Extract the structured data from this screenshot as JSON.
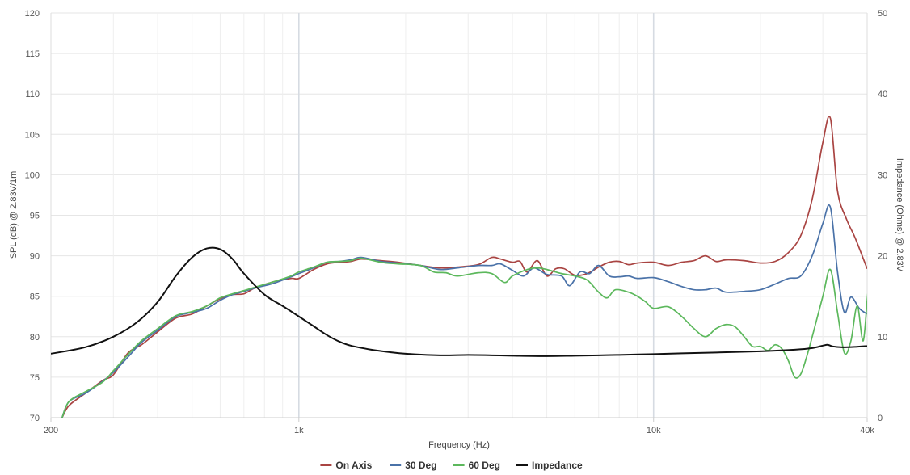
{
  "chart_data": {
    "type": "line",
    "title": "",
    "xlabel": "Frequency (Hz)",
    "ylabel": "SPL (dB) @ 2.83V/1m",
    "y2label": "Impedance (Ohms) @ 2.83V",
    "x_scale": "log",
    "xlim": [
      200,
      40000
    ],
    "ylim": [
      70,
      120
    ],
    "y2lim": [
      0,
      50
    ],
    "grid": true,
    "legend_position": "bottom-center",
    "x_ticks": [
      {
        "value": 200,
        "label": "200"
      },
      {
        "value": 1000,
        "label": "1k"
      },
      {
        "value": 10000,
        "label": "10k"
      },
      {
        "value": 40000,
        "label": "40k"
      }
    ],
    "y_ticks": [
      70,
      75,
      80,
      85,
      90,
      95,
      100,
      105,
      110,
      115,
      120
    ],
    "y2_ticks": [
      0,
      10,
      20,
      30,
      40,
      50
    ],
    "series": [
      {
        "name": "On Axis",
        "color": "#a94442",
        "axis": "left",
        "points": [
          [
            215,
            70
          ],
          [
            225,
            71.5
          ],
          [
            250,
            73
          ],
          [
            280,
            74.6
          ],
          [
            300,
            75.3
          ],
          [
            330,
            78
          ],
          [
            360,
            79
          ],
          [
            400,
            80.6
          ],
          [
            450,
            82.3
          ],
          [
            500,
            82.8
          ],
          [
            550,
            83.8
          ],
          [
            600,
            84.7
          ],
          [
            650,
            85.2
          ],
          [
            700,
            85.3
          ],
          [
            750,
            86
          ],
          [
            850,
            86.8
          ],
          [
            950,
            87.2
          ],
          [
            1000,
            87.2
          ],
          [
            1100,
            88.3
          ],
          [
            1200,
            89
          ],
          [
            1300,
            89.2
          ],
          [
            1400,
            89.3
          ],
          [
            1500,
            89.6
          ],
          [
            1700,
            89.4
          ],
          [
            1900,
            89.2
          ],
          [
            2200,
            88.8
          ],
          [
            2500,
            88.5
          ],
          [
            2800,
            88.6
          ],
          [
            3200,
            88.9
          ],
          [
            3500,
            89.8
          ],
          [
            3700,
            89.6
          ],
          [
            4000,
            89.2
          ],
          [
            4200,
            89.3
          ],
          [
            4400,
            88
          ],
          [
            4700,
            89.4
          ],
          [
            5000,
            87.5
          ],
          [
            5300,
            88.4
          ],
          [
            5600,
            88.4
          ],
          [
            6000,
            87.6
          ],
          [
            6500,
            87.8
          ],
          [
            7000,
            88.6
          ],
          [
            7500,
            89.2
          ],
          [
            8000,
            89.3
          ],
          [
            8500,
            88.9
          ],
          [
            9000,
            89.1
          ],
          [
            10000,
            89.2
          ],
          [
            11000,
            88.8
          ],
          [
            12000,
            89.2
          ],
          [
            13000,
            89.4
          ],
          [
            14000,
            90
          ],
          [
            15000,
            89.3
          ],
          [
            16000,
            89.5
          ],
          [
            18000,
            89.4
          ],
          [
            20000,
            89.1
          ],
          [
            22000,
            89.3
          ],
          [
            24000,
            90.4
          ],
          [
            26000,
            92.5
          ],
          [
            28000,
            97
          ],
          [
            30000,
            104
          ],
          [
            31500,
            107
          ],
          [
            33000,
            98
          ],
          [
            35000,
            94.5
          ],
          [
            37000,
            92.2
          ],
          [
            40000,
            88.4
          ]
        ]
      },
      {
        "name": "30 Deg",
        "color": "#4a72a8",
        "axis": "left",
        "points": [
          [
            215,
            70
          ],
          [
            225,
            72
          ],
          [
            250,
            73
          ],
          [
            280,
            74.5
          ],
          [
            300,
            75.6
          ],
          [
            330,
            77.5
          ],
          [
            360,
            79.3
          ],
          [
            400,
            80.8
          ],
          [
            450,
            82.5
          ],
          [
            500,
            83
          ],
          [
            550,
            83.5
          ],
          [
            600,
            84.5
          ],
          [
            650,
            85.2
          ],
          [
            700,
            85.6
          ],
          [
            750,
            86
          ],
          [
            850,
            86.6
          ],
          [
            950,
            87.4
          ],
          [
            1000,
            87.8
          ],
          [
            1100,
            88.5
          ],
          [
            1200,
            89.2
          ],
          [
            1300,
            89.3
          ],
          [
            1400,
            89.5
          ],
          [
            1500,
            89.8
          ],
          [
            1700,
            89.3
          ],
          [
            1900,
            89.1
          ],
          [
            2200,
            88.8
          ],
          [
            2500,
            88.3
          ],
          [
            2800,
            88.5
          ],
          [
            3200,
            88.8
          ],
          [
            3500,
            88.8
          ],
          [
            3700,
            89
          ],
          [
            4000,
            88.2
          ],
          [
            4300,
            87.5
          ],
          [
            4600,
            88.5
          ],
          [
            5000,
            87.7
          ],
          [
            5500,
            87.5
          ],
          [
            5800,
            86.3
          ],
          [
            6200,
            88
          ],
          [
            6600,
            87.8
          ],
          [
            7000,
            88.8
          ],
          [
            7500,
            87.5
          ],
          [
            8000,
            87.4
          ],
          [
            8500,
            87.5
          ],
          [
            9000,
            87.2
          ],
          [
            10000,
            87.3
          ],
          [
            11000,
            86.8
          ],
          [
            12000,
            86.2
          ],
          [
            13000,
            85.8
          ],
          [
            14000,
            85.8
          ],
          [
            15000,
            86
          ],
          [
            16000,
            85.5
          ],
          [
            18000,
            85.6
          ],
          [
            20000,
            85.8
          ],
          [
            22000,
            86.5
          ],
          [
            24000,
            87.2
          ],
          [
            26000,
            87.5
          ],
          [
            28000,
            90
          ],
          [
            30000,
            94
          ],
          [
            31500,
            96
          ],
          [
            33000,
            88
          ],
          [
            34500,
            83
          ],
          [
            36000,
            84.9
          ],
          [
            38000,
            83.5
          ],
          [
            40000,
            82.8
          ]
        ]
      },
      {
        "name": "60 Deg",
        "color": "#5cb85c",
        "axis": "left",
        "points": [
          [
            215,
            70
          ],
          [
            225,
            72
          ],
          [
            250,
            73.2
          ],
          [
            280,
            74.4
          ],
          [
            300,
            75.8
          ],
          [
            330,
            77.8
          ],
          [
            360,
            79.5
          ],
          [
            400,
            81
          ],
          [
            450,
            82.6
          ],
          [
            500,
            83.1
          ],
          [
            550,
            83.8
          ],
          [
            600,
            84.8
          ],
          [
            650,
            85.3
          ],
          [
            700,
            85.7
          ],
          [
            750,
            86.1
          ],
          [
            850,
            86.8
          ],
          [
            950,
            87.5
          ],
          [
            1000,
            88
          ],
          [
            1100,
            88.6
          ],
          [
            1200,
            89.2
          ],
          [
            1300,
            89.3
          ],
          [
            1400,
            89.4
          ],
          [
            1500,
            89.7
          ],
          [
            1700,
            89.2
          ],
          [
            1900,
            89
          ],
          [
            2200,
            88.8
          ],
          [
            2400,
            88
          ],
          [
            2600,
            87.9
          ],
          [
            2800,
            87.5
          ],
          [
            3200,
            87.9
          ],
          [
            3500,
            87.8
          ],
          [
            3800,
            86.7
          ],
          [
            4000,
            87.5
          ],
          [
            4400,
            88.3
          ],
          [
            4700,
            88.5
          ],
          [
            5000,
            88.3
          ],
          [
            5500,
            87.8
          ],
          [
            6000,
            87.5
          ],
          [
            6500,
            87
          ],
          [
            7000,
            85.5
          ],
          [
            7400,
            84.8
          ],
          [
            7800,
            85.8
          ],
          [
            8500,
            85.5
          ],
          [
            9000,
            85
          ],
          [
            9500,
            84.3
          ],
          [
            10000,
            83.5
          ],
          [
            11000,
            83.7
          ],
          [
            12000,
            82.5
          ],
          [
            13000,
            81
          ],
          [
            14000,
            80
          ],
          [
            15000,
            81
          ],
          [
            16000,
            81.5
          ],
          [
            17000,
            81.2
          ],
          [
            18000,
            80
          ],
          [
            19000,
            78.8
          ],
          [
            20000,
            78.8
          ],
          [
            21000,
            78.3
          ],
          [
            22000,
            79
          ],
          [
            23000,
            78.5
          ],
          [
            24000,
            77
          ],
          [
            25000,
            75
          ],
          [
            26000,
            75.4
          ],
          [
            27000,
            77.5
          ],
          [
            28000,
            80
          ],
          [
            30000,
            85
          ],
          [
            31500,
            88.3
          ],
          [
            33000,
            83
          ],
          [
            34500,
            78
          ],
          [
            36000,
            79.5
          ],
          [
            37500,
            83.8
          ],
          [
            39000,
            79.5
          ],
          [
            40500,
            86
          ],
          [
            42000,
            78
          ]
        ]
      },
      {
        "name": "Impedance",
        "color": "#111111",
        "axis": "right",
        "points": [
          [
            200,
            7.9
          ],
          [
            250,
            8.7
          ],
          [
            300,
            10
          ],
          [
            350,
            11.8
          ],
          [
            400,
            14.3
          ],
          [
            450,
            17.5
          ],
          [
            500,
            19.8
          ],
          [
            550,
            20.9
          ],
          [
            600,
            20.8
          ],
          [
            650,
            19.6
          ],
          [
            700,
            17.8
          ],
          [
            800,
            15.2
          ],
          [
            900,
            13.8
          ],
          [
            1000,
            12.5
          ],
          [
            1100,
            11.3
          ],
          [
            1200,
            10.2
          ],
          [
            1300,
            9.4
          ],
          [
            1400,
            8.9
          ],
          [
            1600,
            8.4
          ],
          [
            1800,
            8.1
          ],
          [
            2000,
            7.9
          ],
          [
            2500,
            7.7
          ],
          [
            3000,
            7.75
          ],
          [
            3500,
            7.7
          ],
          [
            4000,
            7.65
          ],
          [
            5000,
            7.6
          ],
          [
            6000,
            7.65
          ],
          [
            7000,
            7.7
          ],
          [
            8000,
            7.75
          ],
          [
            10000,
            7.85
          ],
          [
            12000,
            7.95
          ],
          [
            15000,
            8.05
          ],
          [
            20000,
            8.2
          ],
          [
            25000,
            8.4
          ],
          [
            28000,
            8.6
          ],
          [
            30000,
            8.9
          ],
          [
            31000,
            9.0
          ],
          [
            32000,
            8.8
          ],
          [
            34000,
            8.7
          ],
          [
            37000,
            8.75
          ],
          [
            40000,
            8.85
          ]
        ]
      }
    ]
  }
}
